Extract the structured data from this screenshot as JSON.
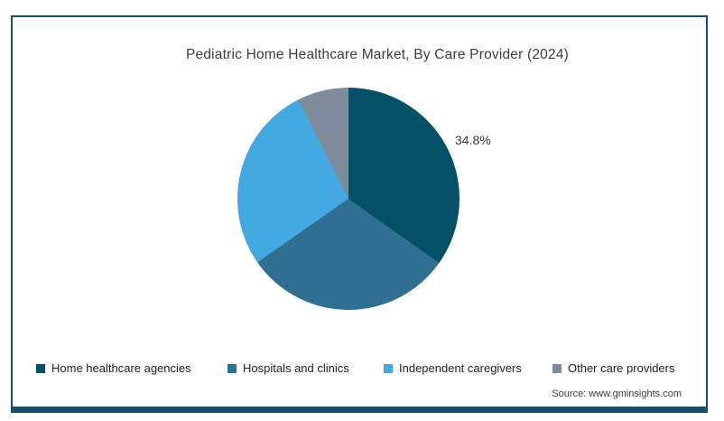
{
  "page": {
    "background_color": "#ffffff",
    "card_border_color": "#15506A",
    "bottom_bar_color": "#15506A"
  },
  "chart_data": {
    "type": "pie",
    "title": "Pediatric Home Healthcare Market, By Care Provider (2024)",
    "start_angle_deg": 0,
    "direction": "clockwise",
    "legend_position": "bottom",
    "slices": [
      {
        "label": "Home healthcare agencies",
        "value": 34.8,
        "color": "#045067",
        "data_label": "34.8%"
      },
      {
        "label": "Hospitals and clinics",
        "value": 30.5,
        "color": "#2F7092",
        "data_label": ""
      },
      {
        "label": "Independent caregivers",
        "value": 27.2,
        "color": "#45A9E1",
        "data_label": ""
      },
      {
        "label": "Other care providers",
        "value": 7.5,
        "color": "#7E8C9C",
        "data_label": ""
      }
    ],
    "shown_data_labels": [
      "34.8%"
    ]
  },
  "footer": {
    "source": "Source: www.gminsights.com"
  }
}
